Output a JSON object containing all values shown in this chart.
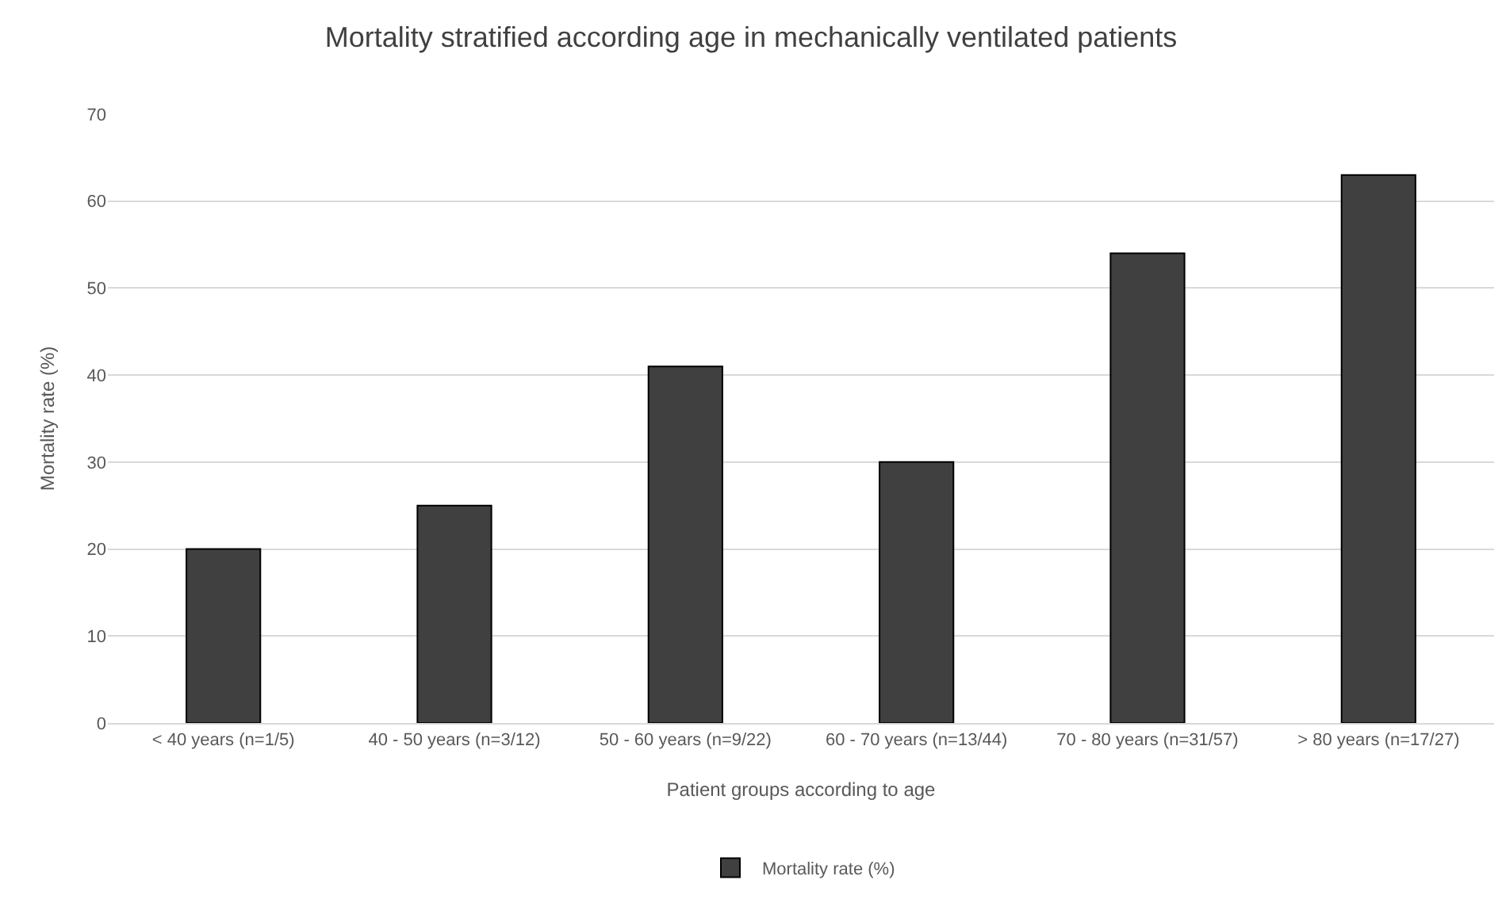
{
  "chart_data": {
    "type": "bar",
    "title": "Mortality stratified according age in mechanically ventilated patients",
    "xlabel": "Patient groups according to age",
    "ylabel": "Mortality rate (%)",
    "categories": [
      "< 40 years (n=1/5)",
      "40 - 50 years (n=3/12)",
      "50 - 60 years (n=9/22)",
      "60 - 70 years (n=13/44)",
      "70 - 80 years (n=31/57)",
      "> 80 years (n=17/27)"
    ],
    "series": [
      {
        "name": "Mortality rate (%)",
        "color": "#404040",
        "values": [
          20,
          25,
          41,
          30,
          54,
          63
        ]
      }
    ],
    "ylim": [
      0,
      70
    ],
    "yticks": [
      0,
      10,
      20,
      30,
      40,
      50,
      60,
      70
    ],
    "grid": "y",
    "legend": "bottom"
  }
}
